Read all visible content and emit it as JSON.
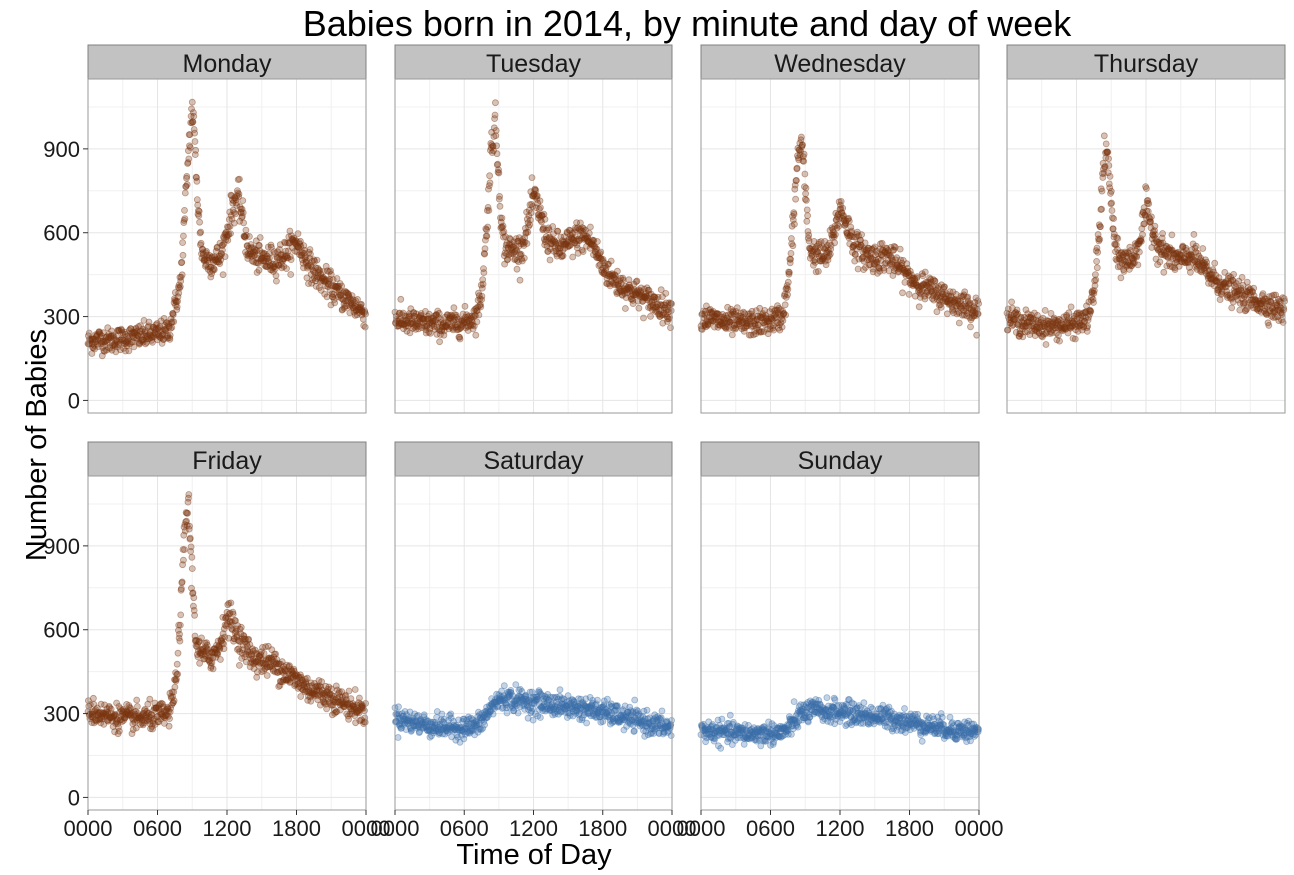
{
  "chart_data": {
    "type": "scatter",
    "title": "Babies born in 2014, by minute and day of week",
    "xlabel": "Time of Day",
    "ylabel": "Number of Babies",
    "x_unit": "minute of day",
    "xlim": [
      0,
      1440
    ],
    "ylim": [
      -45,
      1150
    ],
    "x_ticks": [
      0,
      360,
      720,
      1080,
      1440
    ],
    "x_tick_labels": [
      "0000",
      "0600",
      "1200",
      "1800",
      "0000"
    ],
    "y_ticks": [
      0,
      300,
      600,
      900
    ],
    "y_tick_labels": [
      "0",
      "300",
      "600",
      "900"
    ],
    "grid": true,
    "legend": "none",
    "colors": {
      "weekday": "#7b3510",
      "weekend": "#3a6ea8",
      "strip": "#c2c2c2"
    },
    "panels": [
      {
        "name": "Monday",
        "group": "weekday",
        "x": [
          0,
          60,
          120,
          180,
          240,
          300,
          360,
          420,
          480,
          500,
          520,
          540,
          555,
          570,
          585,
          600,
          615,
          630,
          660,
          690,
          720,
          750,
          780,
          800,
          810,
          825,
          840,
          870,
          900,
          960,
          1020,
          1080,
          1140,
          1200,
          1260,
          1320,
          1380,
          1440
        ],
        "values": [
          210,
          218,
          215,
          220,
          225,
          232,
          238,
          250,
          420,
          650,
          880,
          1050,
          900,
          700,
          560,
          510,
          505,
          500,
          502,
          520,
          600,
          700,
          720,
          660,
          600,
          555,
          530,
          515,
          505,
          500,
          520,
          570,
          490,
          440,
          405,
          370,
          340,
          310
        ]
      },
      {
        "name": "Tuesday",
        "group": "weekday",
        "x": [
          0,
          60,
          120,
          180,
          240,
          300,
          360,
          420,
          450,
          480,
          500,
          520,
          540,
          555,
          570,
          600,
          630,
          660,
          690,
          720,
          750,
          780,
          810,
          840,
          870,
          900,
          960,
          1020,
          1080,
          1140,
          1200,
          1260,
          1320,
          1380,
          1440
        ],
        "values": [
          290,
          282,
          275,
          275,
          270,
          275,
          280,
          300,
          380,
          650,
          900,
          1000,
          800,
          620,
          545,
          540,
          535,
          545,
          620,
          730,
          680,
          600,
          560,
          550,
          545,
          560,
          590,
          570,
          480,
          430,
          400,
          380,
          355,
          340,
          320
        ]
      },
      {
        "name": "Wednesday",
        "group": "weekday",
        "x": [
          0,
          60,
          120,
          180,
          240,
          300,
          360,
          420,
          450,
          480,
          500,
          520,
          540,
          555,
          570,
          600,
          630,
          660,
          690,
          720,
          750,
          780,
          810,
          840,
          870,
          900,
          960,
          1020,
          1080,
          1140,
          1200,
          1260,
          1320,
          1380,
          1440
        ],
        "values": [
          300,
          290,
          280,
          278,
          275,
          278,
          285,
          300,
          400,
          650,
          860,
          930,
          760,
          600,
          530,
          520,
          515,
          525,
          600,
          690,
          640,
          580,
          545,
          530,
          515,
          510,
          520,
          480,
          440,
          410,
          390,
          370,
          350,
          335,
          320
        ]
      },
      {
        "name": "Thursday",
        "group": "weekday",
        "x": [
          0,
          60,
          120,
          180,
          240,
          300,
          360,
          420,
          450,
          480,
          500,
          520,
          540,
          555,
          570,
          600,
          630,
          660,
          690,
          720,
          750,
          780,
          810,
          840,
          870,
          900,
          960,
          1020,
          1080,
          1140,
          1200,
          1260,
          1320,
          1380,
          1440
        ],
        "values": [
          300,
          280,
          270,
          268,
          265,
          268,
          275,
          295,
          380,
          620,
          850,
          880,
          720,
          570,
          510,
          500,
          500,
          515,
          580,
          690,
          620,
          560,
          530,
          520,
          505,
          500,
          520,
          470,
          430,
          400,
          380,
          365,
          350,
          335,
          320
        ]
      },
      {
        "name": "Friday",
        "group": "weekday",
        "x": [
          0,
          60,
          120,
          180,
          240,
          300,
          360,
          420,
          450,
          480,
          500,
          520,
          540,
          555,
          570,
          600,
          630,
          660,
          690,
          720,
          750,
          780,
          810,
          840,
          870,
          900,
          960,
          1020,
          1080,
          1140,
          1200,
          1260,
          1320,
          1380,
          1440
        ],
        "values": [
          310,
          300,
          290,
          285,
          282,
          285,
          290,
          300,
          380,
          650,
          950,
          1050,
          780,
          600,
          520,
          510,
          505,
          515,
          560,
          650,
          620,
          570,
          540,
          510,
          495,
          490,
          480,
          450,
          420,
          390,
          375,
          360,
          340,
          320,
          305
        ]
      },
      {
        "name": "Saturday",
        "group": "weekend",
        "x": [
          0,
          60,
          120,
          180,
          240,
          300,
          360,
          420,
          450,
          480,
          510,
          540,
          570,
          600,
          660,
          720,
          780,
          840,
          900,
          960,
          1020,
          1080,
          1140,
          1200,
          1260,
          1320,
          1380,
          1440
        ],
        "values": [
          285,
          275,
          265,
          258,
          252,
          250,
          250,
          255,
          270,
          300,
          330,
          350,
          355,
          350,
          345,
          340,
          335,
          330,
          325,
          320,
          315,
          305,
          295,
          285,
          275,
          265,
          255,
          250
        ]
      },
      {
        "name": "Sunday",
        "group": "weekend",
        "x": [
          0,
          60,
          120,
          180,
          240,
          300,
          360,
          420,
          450,
          480,
          510,
          540,
          570,
          600,
          660,
          720,
          780,
          840,
          900,
          960,
          1020,
          1080,
          1140,
          1200,
          1260,
          1320,
          1380,
          1440
        ],
        "values": [
          240,
          235,
          232,
          230,
          228,
          228,
          230,
          232,
          245,
          270,
          295,
          305,
          310,
          310,
          308,
          305,
          300,
          295,
          290,
          285,
          278,
          270,
          262,
          255,
          248,
          242,
          238,
          235
        ]
      }
    ]
  }
}
